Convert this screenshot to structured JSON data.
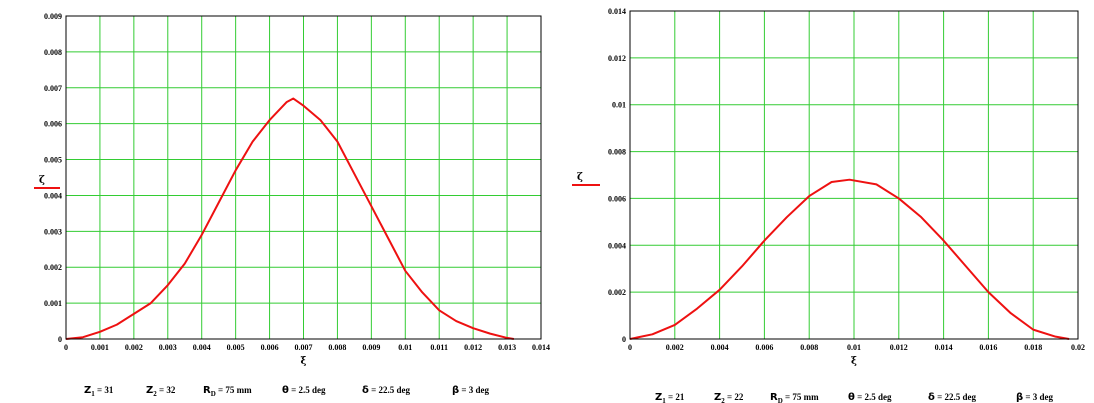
{
  "colors": {
    "grid": "#33cc33",
    "curve": "#ee1111",
    "frame": "#000000"
  },
  "chart_data": [
    {
      "type": "line",
      "xlabel": "ξ",
      "ylabel": "ζ",
      "xlim": [
        0,
        0.014
      ],
      "ylim": [
        0,
        0.009
      ],
      "xticks": [
        "0",
        "0.001",
        "0.002",
        "0.003",
        "0.004",
        "0.005",
        "0.006",
        "0.007",
        "0.008",
        "0.009",
        "0.01",
        "0.011",
        "0.012",
        "0.013",
        "0.014"
      ],
      "yticks": [
        "0",
        "0.001",
        "0.002",
        "0.003",
        "0.004",
        "0.005",
        "0.006",
        "0.007",
        "0.008",
        "0.009"
      ],
      "grid": true,
      "series": [
        {
          "x": [
            0,
            0.0005,
            0.001,
            0.0015,
            0.002,
            0.0025,
            0.003,
            0.0035,
            0.004,
            0.0045,
            0.005,
            0.0055,
            0.006,
            0.0065,
            0.0067,
            0.007,
            0.0075,
            0.008,
            0.0085,
            0.009,
            0.0095,
            0.01,
            0.0105,
            0.011,
            0.0115,
            0.012,
            0.0125,
            0.013,
            0.0132
          ],
          "y": [
            0,
            5e-05,
            0.0002,
            0.0004,
            0.0007,
            0.001,
            0.0015,
            0.0021,
            0.0029,
            0.0038,
            0.0047,
            0.0055,
            0.0061,
            0.0066,
            0.0067,
            0.0065,
            0.0061,
            0.0055,
            0.0046,
            0.0037,
            0.0028,
            0.0019,
            0.0013,
            0.0008,
            0.0005,
            0.0003,
            0.00015,
            3e-05,
            0
          ]
        }
      ],
      "params": [
        {
          "sym": "Z",
          "sub": "1",
          "val": " = 31"
        },
        {
          "sym": "Z",
          "sub": "2",
          "val": " = 32"
        },
        {
          "sym": "R",
          "sub": "D",
          "val": " = 75 mm"
        },
        {
          "sym": "θ",
          "sub": "",
          "val": " = 2.5 deg"
        },
        {
          "sym": "δ",
          "sub": "",
          "val": " = 22.5 deg"
        },
        {
          "sym": "β",
          "sub": "",
          "val": " = 3 deg"
        }
      ]
    },
    {
      "type": "line",
      "xlabel": "ξ",
      "ylabel": "ζ",
      "xlim": [
        0,
        0.02
      ],
      "ylim": [
        0,
        0.014
      ],
      "xticks": [
        "0",
        "0.002",
        "0.004",
        "0.006",
        "0.008",
        "0.01",
        "0.012",
        "0.014",
        "0.016",
        "0.018",
        "0.02"
      ],
      "yticks": [
        "0",
        "0.002",
        "0.004",
        "0.006",
        "0.008",
        "0.01",
        "0.012",
        "0.014"
      ],
      "grid": true,
      "series": [
        {
          "x": [
            0,
            0.001,
            0.002,
            0.003,
            0.004,
            0.005,
            0.006,
            0.007,
            0.008,
            0.009,
            0.0098,
            0.011,
            0.012,
            0.013,
            0.014,
            0.015,
            0.016,
            0.017,
            0.018,
            0.019,
            0.0196
          ],
          "y": [
            0,
            0.0002,
            0.0006,
            0.0013,
            0.0021,
            0.0031,
            0.0042,
            0.0052,
            0.0061,
            0.0067,
            0.0068,
            0.0066,
            0.006,
            0.0052,
            0.0042,
            0.0031,
            0.002,
            0.0011,
            0.0004,
            0.0001,
            0
          ]
        }
      ],
      "params": [
        {
          "sym": "Z",
          "sub": "1",
          "val": " = 21"
        },
        {
          "sym": "Z",
          "sub": "2",
          "val": " = 22"
        },
        {
          "sym": "R",
          "sub": "D",
          "val": " = 75 mm"
        },
        {
          "sym": "θ",
          "sub": "",
          "val": " = 2.5 deg"
        },
        {
          "sym": "δ",
          "sub": "",
          "val": " = 22.5 deg"
        },
        {
          "sym": "β",
          "sub": "",
          "val": " = 3 deg"
        }
      ]
    }
  ]
}
